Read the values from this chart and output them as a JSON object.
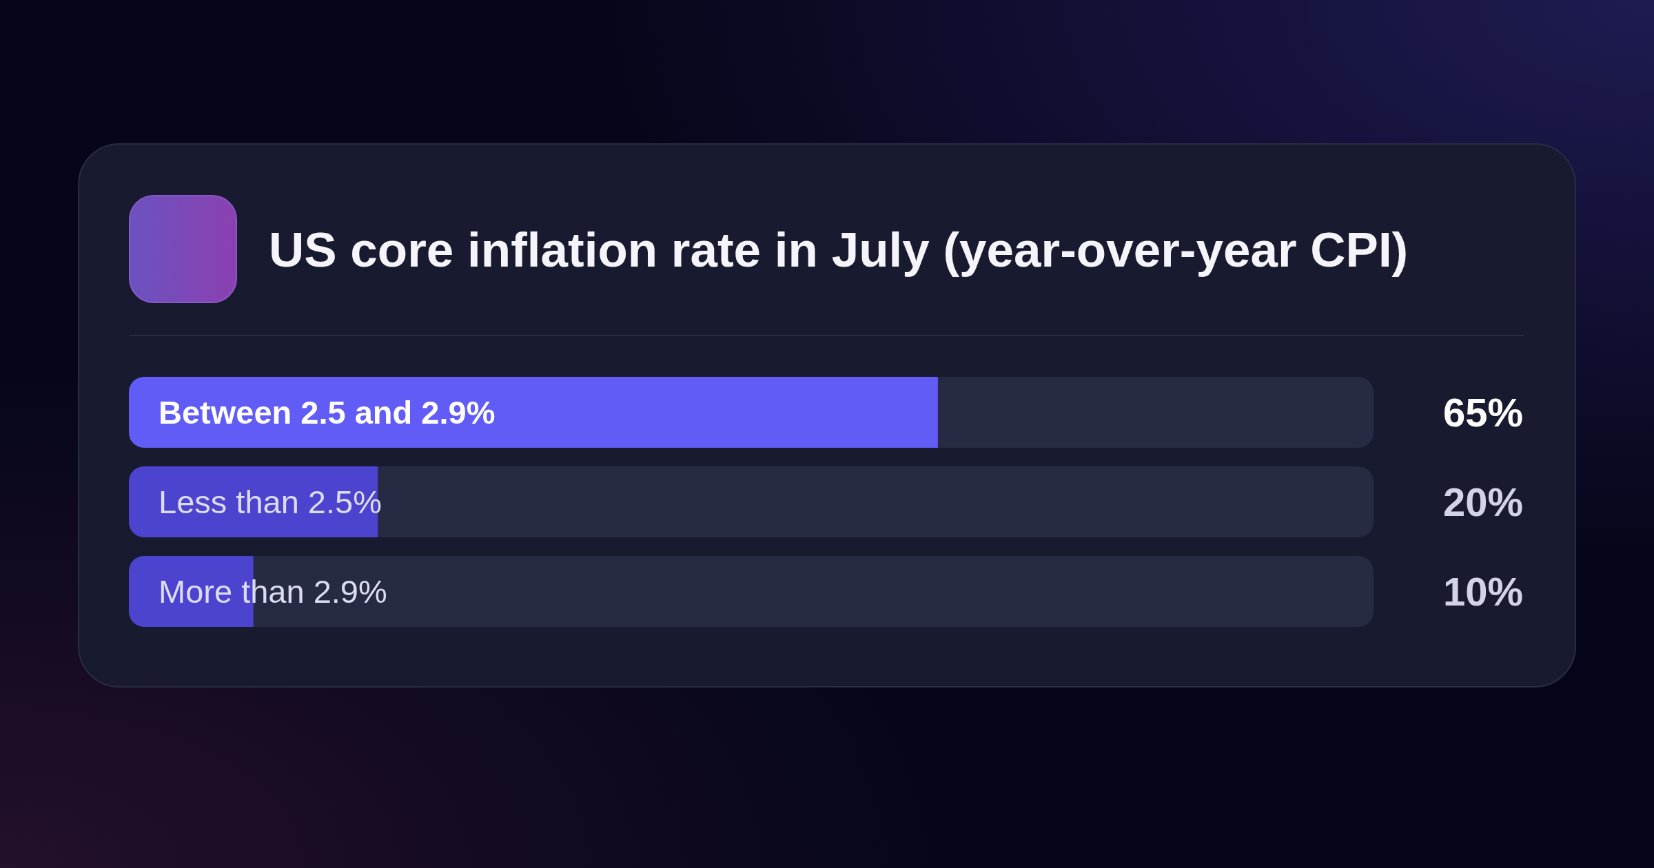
{
  "chart_data": {
    "type": "bar",
    "orientation": "horizontal",
    "title": "US core inflation rate in July (year-over-year CPI)",
    "categories": [
      "Between 2.5 and 2.9%",
      "Less than 2.5%",
      "More than 2.9%"
    ],
    "values": [
      65,
      20,
      10
    ],
    "value_labels": [
      "65%",
      "20%",
      "10%"
    ],
    "colors": [
      "#615cf5",
      "#4c44cf",
      "#4c44cf"
    ],
    "xlim": [
      0,
      100
    ]
  }
}
